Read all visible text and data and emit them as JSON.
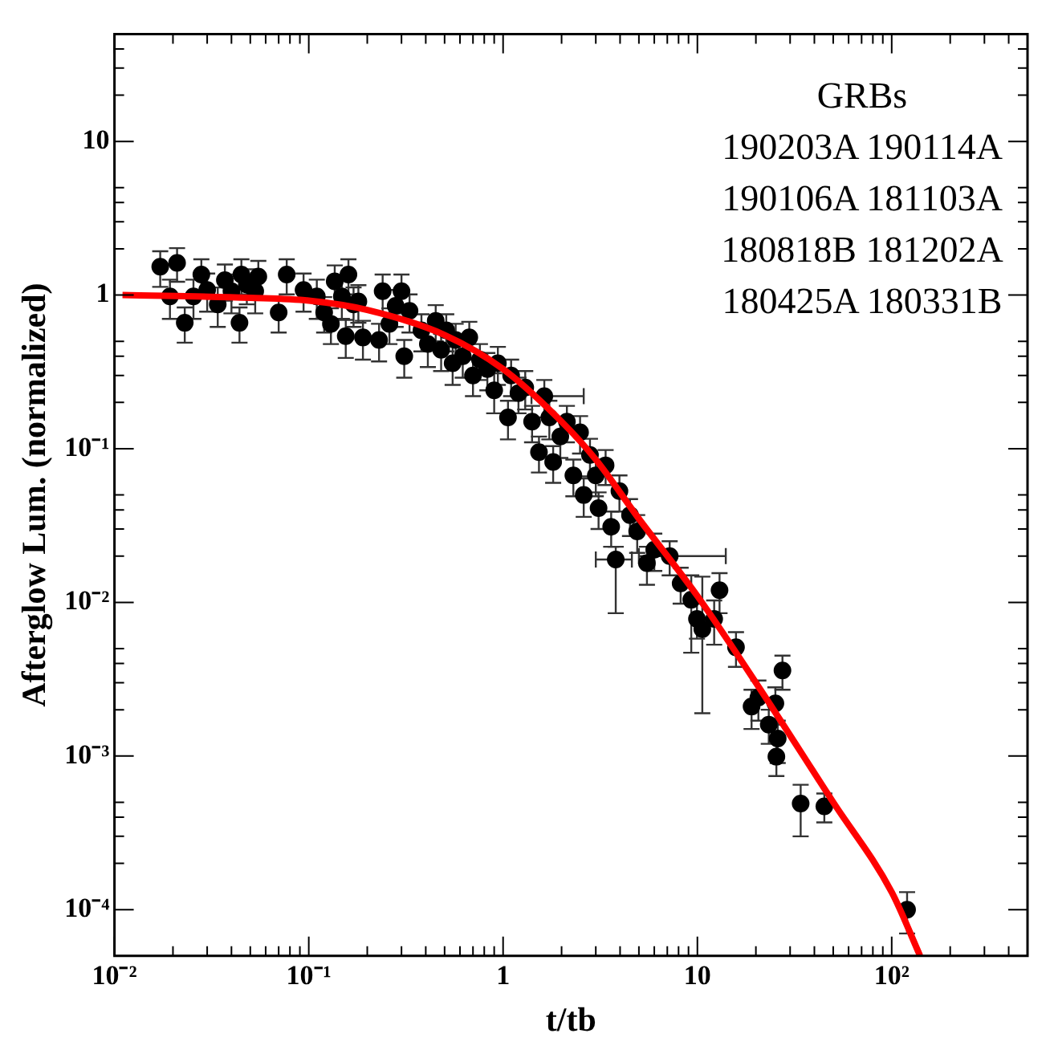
{
  "chart_data": {
    "type": "scatter",
    "xlabel": "t/tb",
    "ylabel": "Afterglow Lum. (normalized)",
    "annotations": [
      "GRBs",
      "190203A 190114A",
      "190106A 181103A",
      "180818B 181202A",
      "180425A 180331B"
    ],
    "log": "xy",
    "grid": false,
    "legend": false,
    "xlim": [
      0.01,
      500
    ],
    "ylim": [
      5e-05,
      50
    ],
    "xticks": [
      {
        "value": 0.01,
        "label": "10⁻²"
      },
      {
        "value": 0.02,
        "label": null
      },
      {
        "value": 0.03,
        "label": null
      },
      {
        "value": 0.04,
        "label": null
      },
      {
        "value": 0.05,
        "label": null
      },
      {
        "value": 0.06,
        "label": null
      },
      {
        "value": 0.07,
        "label": null
      },
      {
        "value": 0.08,
        "label": null
      },
      {
        "value": 0.09,
        "label": null
      },
      {
        "value": 0.1,
        "label": "10⁻¹"
      },
      {
        "value": 0.2,
        "label": null
      },
      {
        "value": 0.3,
        "label": null
      },
      {
        "value": 0.4,
        "label": null
      },
      {
        "value": 0.5,
        "label": null
      },
      {
        "value": 0.6,
        "label": null
      },
      {
        "value": 0.7,
        "label": null
      },
      {
        "value": 0.8,
        "label": null
      },
      {
        "value": 0.9,
        "label": null
      },
      1,
      {
        "value": 2,
        "label": null
      },
      {
        "value": 3,
        "label": null
      },
      {
        "value": 4,
        "label": null
      },
      {
        "value": 5,
        "label": null
      },
      {
        "value": 6,
        "label": null
      },
      {
        "value": 7,
        "label": null
      },
      {
        "value": 8,
        "label": null
      },
      {
        "value": 9,
        "label": null
      },
      10,
      {
        "value": 20,
        "label": null
      },
      {
        "value": 30,
        "label": null
      },
      {
        "value": 40,
        "label": null
      },
      {
        "value": 50,
        "label": null
      },
      {
        "value": 60,
        "label": null
      },
      {
        "value": 70,
        "label": null
      },
      {
        "value": 80,
        "label": null
      },
      {
        "value": 90,
        "label": null
      },
      {
        "value": 100,
        "label": "10²"
      },
      {
        "value": 200,
        "label": null
      },
      {
        "value": 300,
        "label": null
      },
      {
        "value": 400,
        "label": null
      }
    ],
    "yticks": [
      {
        "value": 0.0001,
        "label": "10⁻⁴"
      },
      {
        "value": 0.0002,
        "label": null
      },
      {
        "value": 0.0003,
        "label": null
      },
      {
        "value": 0.0004,
        "label": null
      },
      {
        "value": 0.0005,
        "label": null
      },
      {
        "value": 0.001,
        "label": "10⁻³"
      },
      {
        "value": 0.002,
        "label": null
      },
      {
        "value": 0.003,
        "label": null
      },
      {
        "value": 0.004,
        "label": null
      },
      {
        "value": 0.005,
        "label": null
      },
      {
        "value": 0.01,
        "label": "10⁻²"
      },
      {
        "value": 0.02,
        "label": null
      },
      {
        "value": 0.03,
        "label": null
      },
      {
        "value": 0.04,
        "label": null
      },
      {
        "value": 0.05,
        "label": null
      },
      {
        "value": 0.1,
        "label": "10⁻¹"
      },
      {
        "value": 0.2,
        "label": null
      },
      {
        "value": 0.3,
        "label": null
      },
      {
        "value": 0.4,
        "label": null
      },
      {
        "value": 0.5,
        "label": null
      },
      1,
      {
        "value": 2,
        "label": null
      },
      {
        "value": 3,
        "label": null
      },
      {
        "value": 4,
        "label": null
      },
      {
        "value": 5,
        "label": null
      },
      10,
      {
        "value": 20,
        "label": null
      },
      {
        "value": 30,
        "label": null
      },
      {
        "value": 40,
        "label": null
      }
    ],
    "series": [
      {
        "color": "#000000",
        "marker": "circle",
        "x": [
          0.0172,
          0.021,
          0.0193,
          0.023,
          0.0255,
          0.028,
          0.03,
          0.034,
          0.037,
          0.04,
          0.045,
          0.044,
          0.048,
          0.053,
          0.055,
          0.07,
          0.077,
          0.094,
          0.11,
          0.12,
          0.136,
          0.13,
          0.148,
          0.16,
          0.17,
          0.155,
          0.18,
          0.19,
          0.24,
          0.23,
          0.26,
          0.28,
          0.3,
          0.33,
          0.31,
          0.38,
          0.41,
          0.45,
          0.48,
          0.51,
          0.55,
          0.57,
          0.62,
          0.67,
          0.7,
          0.76,
          0.83,
          0.9,
          0.94,
          1.06,
          1.1,
          1.2,
          1.3,
          1.41,
          1.53,
          1.63,
          1.73,
          1.81,
          1.97,
          2.13,
          2.3,
          2.49,
          2.6,
          2.8,
          3.0,
          3.1,
          3.37,
          3.6,
          3.8,
          3.97,
          4.5,
          4.9,
          5.5,
          6.0,
          7.2,
          8.2,
          9.3,
          9.95,
          10.6,
          12.2,
          13.0,
          15.8,
          19.0,
          20.6,
          23.3,
          25.2,
          25.9,
          27.4,
          25.5,
          34,
          45,
          120
        ],
        "values": [
          1.53,
          1.62,
          0.98,
          0.66,
          0.98,
          1.36,
          1.08,
          0.87,
          1.25,
          1.06,
          1.36,
          0.66,
          1.17,
          1.06,
          1.32,
          0.77,
          1.36,
          1.08,
          0.98,
          0.77,
          1.23,
          0.65,
          0.98,
          1.36,
          0.87,
          0.54,
          0.91,
          0.53,
          1.06,
          0.51,
          0.65,
          0.85,
          1.06,
          0.79,
          0.4,
          0.59,
          0.48,
          0.68,
          0.44,
          0.59,
          0.36,
          0.51,
          0.4,
          0.53,
          0.3,
          0.38,
          0.33,
          0.24,
          0.36,
          0.16,
          0.3,
          0.23,
          0.25,
          0.15,
          0.095,
          0.22,
          0.16,
          0.082,
          0.12,
          0.15,
          0.067,
          0.128,
          0.05,
          0.091,
          0.067,
          0.041,
          0.078,
          0.031,
          0.019,
          0.053,
          0.037,
          0.029,
          0.018,
          0.022,
          0.02,
          0.0133,
          0.0104,
          0.0078,
          0.0067,
          0.0078,
          0.012,
          0.0051,
          0.0021,
          0.0024,
          0.0016,
          0.0022,
          0.0013,
          0.0036,
          0.00099,
          0.00049,
          0.00047,
          0.0001
        ],
        "errors": [
          0.4,
          0.4,
          0.28,
          0.17,
          0.28,
          0.35,
          0.3,
          0.25,
          0.33,
          0.3,
          0.35,
          0.17,
          0.3,
          0.3,
          0.35,
          0.2,
          0.35,
          0.3,
          0.28,
          0.2,
          0.33,
          0.17,
          0.28,
          0.35,
          0.25,
          0.15,
          0.25,
          0.15,
          0.3,
          0.14,
          0.17,
          0.23,
          0.3,
          0.22,
          0.11,
          0.16,
          0.14,
          0.18,
          0.12,
          0.16,
          0.1,
          0.14,
          0.11,
          0.14,
          0.08,
          0.1,
          0.09,
          0.07,
          0.1,
          0.045,
          0.08,
          0.06,
          0.07,
          0.04,
          0.025,
          0.06,
          0.045,
          0.022,
          0.033,
          0.04,
          0.018,
          0.035,
          0.014,
          0.025,
          0.018,
          0.011,
          0.02,
          0.008,
          [
            0.0085,
            0.023
          ],
          0.014,
          0.01,
          0.008,
          0.005,
          0.006,
          0.005,
          0.0035,
          [
            0.0047,
            0.015
          ],
          0.002,
          [
            0.0019,
            0.0147
          ],
          0.0025,
          0.0035,
          0.0013,
          0.0006,
          0.0007,
          0.0004,
          0.0006,
          0.0004,
          0.0009,
          0.00025,
          [
            0.0003,
            0.00065
          ],
          0.0001,
          3e-05
        ],
        "xerrors": [
          null,
          null,
          null,
          null,
          null,
          null,
          null,
          null,
          null,
          null,
          null,
          null,
          null,
          null,
          null,
          null,
          null,
          null,
          null,
          null,
          null,
          null,
          null,
          null,
          null,
          null,
          null,
          null,
          null,
          null,
          null,
          null,
          null,
          null,
          null,
          null,
          null,
          null,
          null,
          null,
          null,
          null,
          null,
          null,
          null,
          null,
          null,
          null,
          null,
          null,
          null,
          null,
          null,
          null,
          null,
          [
            1.4,
            2.6
          ],
          null,
          null,
          null,
          null,
          null,
          null,
          null,
          null,
          null,
          null,
          null,
          null,
          [
            3.0,
            4.6
          ],
          null,
          null,
          null,
          null,
          null,
          [
            5,
            14
          ],
          null,
          null,
          null,
          null,
          null,
          null,
          null,
          null,
          null,
          null,
          null,
          null,
          null,
          null,
          null,
          null,
          null
        ]
      },
      {
        "type": "line",
        "color": "#ff0000",
        "marker": "none",
        "line_style": "solid",
        "x": [
          0.011,
          0.05,
          0.1,
          0.2,
          0.5,
          1,
          2,
          3,
          5,
          10,
          20,
          50,
          100,
          140
        ],
        "values": [
          1.0,
          0.96,
          0.92,
          0.8,
          0.55,
          0.33,
          0.15,
          0.085,
          0.035,
          0.011,
          0.003,
          0.0005,
          0.00013,
          5e-05
        ]
      }
    ]
  }
}
